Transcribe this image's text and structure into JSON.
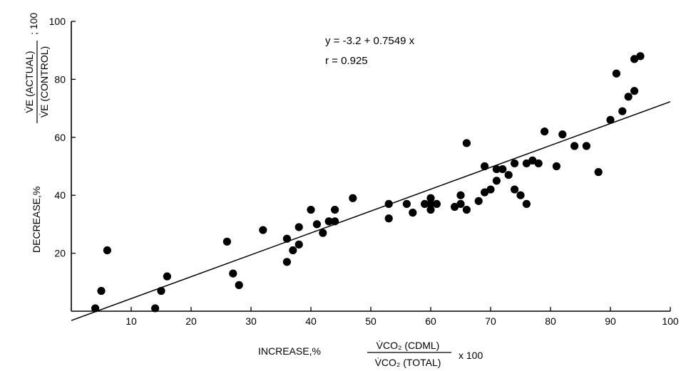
{
  "chart_data": {
    "type": "scatter",
    "xlim": [
      0,
      100
    ],
    "ylim": [
      0,
      100
    ],
    "x_ticks": [
      "10",
      "20",
      "30",
      "40",
      "50",
      "60",
      "70",
      "80",
      "90",
      "100"
    ],
    "y_ticks": [
      "20",
      "40",
      "60",
      "80",
      "100"
    ],
    "xlabel": {
      "prefix": "INCREASE,%",
      "numerator": "V̇CO₂ (CDML)",
      "denominator": "V̇CO₂ (TOTAL)",
      "suffix": "x  100"
    },
    "ylabel": {
      "prefix": "DECREASE,%",
      "numerator": "V̇E (ACTUAL)",
      "denominator": "V̇E (CONTROL)",
      "suffix": "; 100"
    },
    "annotations": {
      "equation": "y = -3.2 + 0.7549 x",
      "r_value": "r = 0.925"
    },
    "regression": {
      "intercept": -3.2,
      "slope": 0.7549,
      "x_range": [
        0,
        100
      ]
    },
    "grid": false,
    "points": [
      [
        4,
        1
      ],
      [
        5,
        7
      ],
      [
        6,
        21
      ],
      [
        14,
        1
      ],
      [
        15,
        7
      ],
      [
        16,
        12
      ],
      [
        26,
        24
      ],
      [
        27,
        13
      ],
      [
        28,
        9
      ],
      [
        32,
        28
      ],
      [
        36,
        25
      ],
      [
        36,
        17
      ],
      [
        37,
        21
      ],
      [
        38,
        23
      ],
      [
        38,
        29
      ],
      [
        40,
        35
      ],
      [
        41,
        30
      ],
      [
        42,
        27
      ],
      [
        43,
        31
      ],
      [
        44,
        31
      ],
      [
        44,
        35
      ],
      [
        47,
        39
      ],
      [
        53,
        37
      ],
      [
        53,
        32
      ],
      [
        56,
        37
      ],
      [
        57,
        34
      ],
      [
        59,
        37
      ],
      [
        60,
        39
      ],
      [
        60,
        35
      ],
      [
        60,
        37
      ],
      [
        61,
        37
      ],
      [
        64,
        36
      ],
      [
        65,
        40
      ],
      [
        65,
        37
      ],
      [
        66,
        35
      ],
      [
        66,
        58
      ],
      [
        68,
        38
      ],
      [
        69,
        50
      ],
      [
        69,
        41
      ],
      [
        70,
        42
      ],
      [
        71,
        49
      ],
      [
        71,
        45
      ],
      [
        72,
        49
      ],
      [
        73,
        47
      ],
      [
        74,
        51
      ],
      [
        74,
        42
      ],
      [
        75,
        40
      ],
      [
        76,
        37
      ],
      [
        76,
        51
      ],
      [
        77,
        52
      ],
      [
        78,
        51
      ],
      [
        79,
        62
      ],
      [
        81,
        50
      ],
      [
        82,
        61
      ],
      [
        84,
        57
      ],
      [
        86,
        57
      ],
      [
        88,
        48
      ],
      [
        90,
        66
      ],
      [
        91,
        82
      ],
      [
        92,
        69
      ],
      [
        93,
        74
      ],
      [
        94,
        76
      ],
      [
        94,
        87
      ],
      [
        95,
        88
      ]
    ]
  }
}
